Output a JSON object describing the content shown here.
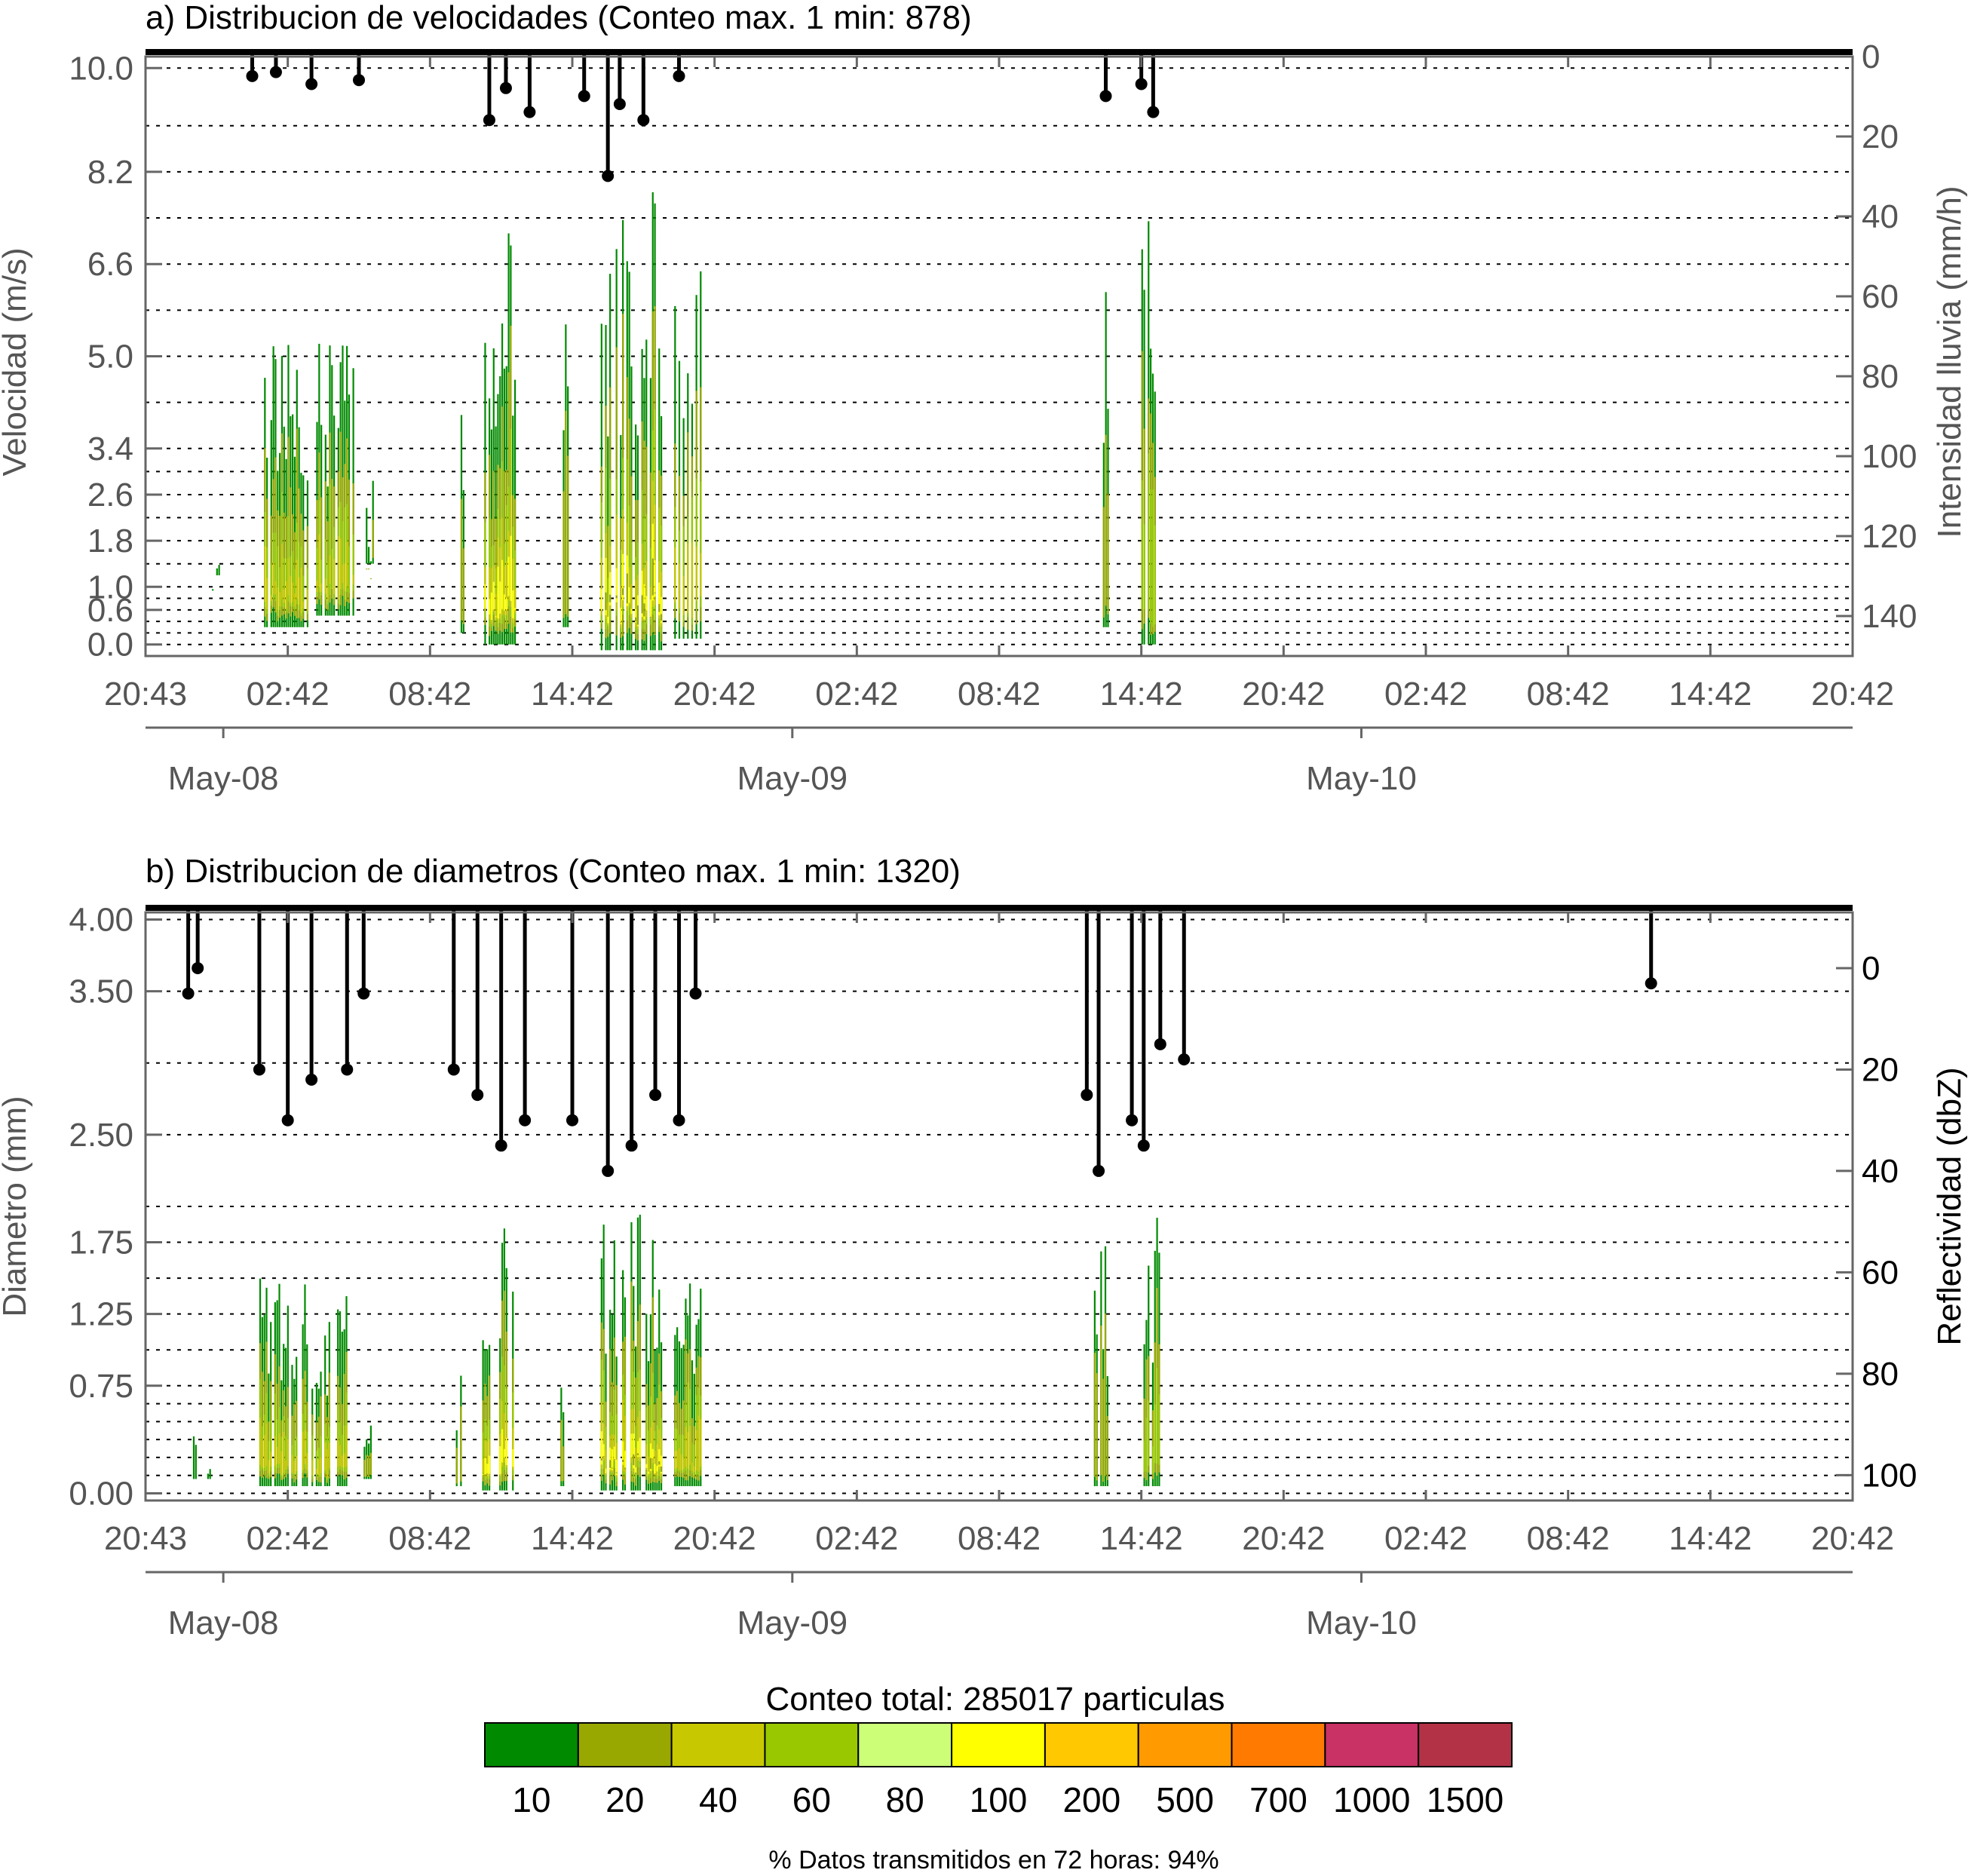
{
  "chart_data": [
    {
      "type": "heatmap",
      "title": "a) Distribucion de velocidades (Conteo max. 1 min: 878)",
      "ylabel": "Velocidad (m/s)",
      "y2label": "Intensidad lluvia (mm/h)",
      "ylim": [
        -0.2,
        10.2
      ],
      "y_ticks": [
        0.0,
        0.6,
        1.0,
        1.8,
        2.6,
        3.4,
        5.0,
        6.6,
        8.2,
        10.0
      ],
      "y_tick_labels": [
        "0.0",
        "0.6",
        "1.0",
        "1.8",
        "2.6",
        "3.4",
        "5.0",
        "6.6",
        "8.2",
        "10.0"
      ],
      "y_gridlines": [
        0.0,
        0.2,
        0.4,
        0.6,
        0.8,
        1.0,
        1.4,
        1.8,
        2.2,
        2.6,
        3.0,
        3.4,
        4.2,
        5.0,
        5.8,
        6.6,
        7.4,
        8.2,
        9.0,
        10.0
      ],
      "y2lim": [
        0,
        150
      ],
      "y2_ticks": [
        0,
        20,
        40,
        60,
        80,
        100,
        120,
        140
      ],
      "x_tick_labels": [
        "20:43",
        "02:42",
        "08:42",
        "14:42",
        "20:42",
        "02:42",
        "08:42",
        "14:42",
        "20:42",
        "02:42",
        "08:42",
        "14:42",
        "20:42"
      ],
      "dates": [
        "May-08",
        "May-09",
        "May-10"
      ],
      "rain_events_hours": [
        [
          2.5,
          9.5
        ],
        [
          13.0,
          15.5
        ],
        [
          17.5,
          23.5
        ],
        [
          40.0,
          43.5
        ]
      ],
      "series_intensity_mmh": [
        {
          "x_hours": [
            4.5,
            5.5,
            7.0,
            9.0,
            14.5,
            15.2,
            16.2,
            18.5,
            19.5,
            20.0,
            21.0,
            22.5,
            40.5,
            42.0,
            42.5
          ],
          "y": [
            3,
            2,
            5,
            4,
            14,
            6,
            12,
            8,
            28,
            10,
            14,
            3,
            8,
            5,
            12
          ]
        }
      ]
    },
    {
      "type": "heatmap",
      "title": "b) Distribucion de diametros (Conteo max. 1 min: 1320)",
      "ylabel": "Diametro (mm)",
      "y2label": "Reflectividad (dbZ)",
      "ylim": [
        -0.05,
        4.05
      ],
      "y_ticks": [
        0.0,
        0.75,
        1.25,
        1.75,
        2.5,
        3.5,
        4.0
      ],
      "y_tick_labels": [
        "0.00",
        "0.75",
        "1.25",
        "1.75",
        "2.50",
        "3.50",
        "4.00"
      ],
      "y_gridlines": [
        0.0,
        0.125,
        0.25,
        0.375,
        0.5,
        0.625,
        0.75,
        1.0,
        1.25,
        1.5,
        1.75,
        2.0,
        2.5,
        3.0,
        3.5,
        4.0
      ],
      "y2lim": [
        105,
        -11
      ],
      "y2_ticks": [
        0,
        20,
        40,
        60,
        80,
        100
      ],
      "x_tick_labels": [
        "20:43",
        "02:42",
        "08:42",
        "14:42",
        "20:42",
        "02:42",
        "08:42",
        "14:42",
        "20:42",
        "02:42",
        "08:42",
        "14:42",
        "20:42"
      ],
      "dates": [
        "May-08",
        "May-09",
        "May-10"
      ],
      "series_reflectivity_dbz": [
        {
          "x_hours": [
            1.8,
            2.2,
            4.8,
            6.0,
            7.0,
            8.5,
            9.2,
            13.0,
            14.0,
            15.0,
            16.0,
            18.0,
            19.5,
            20.5,
            21.5,
            22.5,
            23.2,
            39.7,
            40.2,
            41.6,
            42.1,
            42.8,
            43.8,
            63.5
          ],
          "y": [
            5,
            0,
            20,
            30,
            22,
            20,
            5,
            20,
            25,
            35,
            30,
            30,
            40,
            35,
            25,
            30,
            5,
            25,
            40,
            30,
            35,
            15,
            18,
            3
          ]
        }
      ]
    }
  ],
  "colorbar": {
    "title": "Conteo total: 285017 particulas",
    "levels": [
      "10",
      "20",
      "40",
      "60",
      "80",
      "100",
      "200",
      "500",
      "700",
      "1000",
      "1500"
    ],
    "colors": [
      "#008a00",
      "#99a800",
      "#c8c800",
      "#99c800",
      "#ccff77",
      "#ffff00",
      "#ffc800",
      "#ff9a00",
      "#ff7a00",
      "#c83264",
      "#b43246"
    ]
  },
  "footer": "% Datos transmitidos en 72 horas: 94%"
}
